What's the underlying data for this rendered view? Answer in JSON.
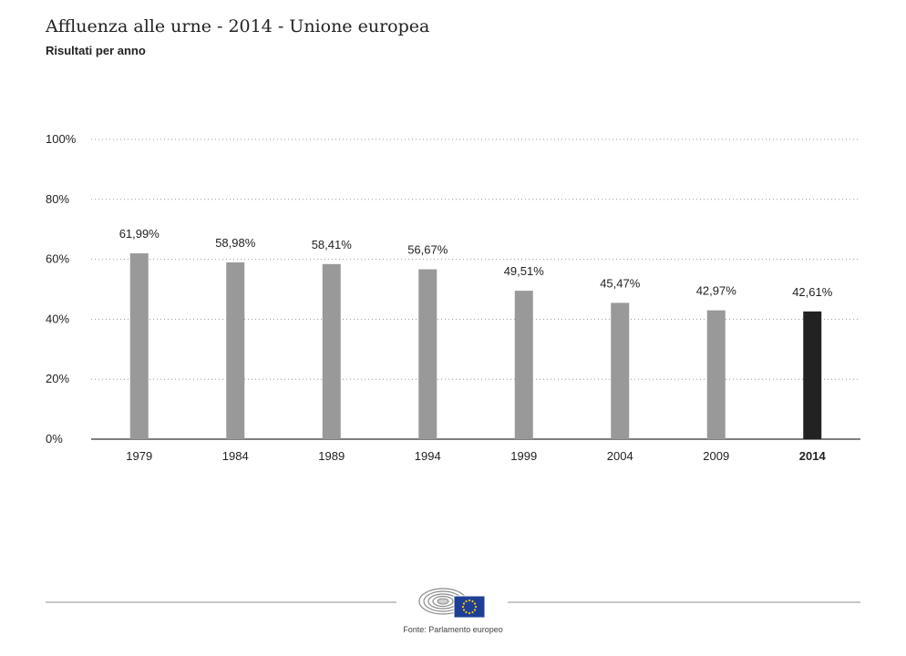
{
  "header": {
    "title": "Affluenza alle urne - 2014 - Unione europea",
    "subtitle": "Risultati per anno"
  },
  "footer": {
    "source": "Fonte: Parlamento europeo",
    "logo_icon": "european-parliament-logo-icon"
  },
  "colors": {
    "bar": "#999999",
    "highlight_bar": "#222222",
    "grid": "#999999",
    "axis": "#333333",
    "text": "#222222"
  },
  "chart_data": {
    "type": "bar",
    "title": "Affluenza alle urne - 2014 - Unione europea",
    "subtitle": "Risultati per anno",
    "categories": [
      "1979",
      "1984",
      "1989",
      "1994",
      "1999",
      "2004",
      "2009",
      "2014"
    ],
    "values": [
      61.99,
      58.98,
      58.41,
      56.67,
      49.51,
      45.47,
      42.97,
      42.61
    ],
    "value_labels": [
      "61,99%",
      "58,98%",
      "58,41%",
      "56,67%",
      "49,51%",
      "45,47%",
      "42,97%",
      "42,61%"
    ],
    "highlight_category": "2014",
    "ylim": [
      0,
      100
    ],
    "yticks": [
      0,
      20,
      40,
      60,
      80,
      100
    ],
    "ytick_labels": [
      "0%",
      "20%",
      "40%",
      "60%",
      "80%",
      "100%"
    ],
    "xlabel": "",
    "ylabel": "",
    "grid": true,
    "legend": "none"
  }
}
